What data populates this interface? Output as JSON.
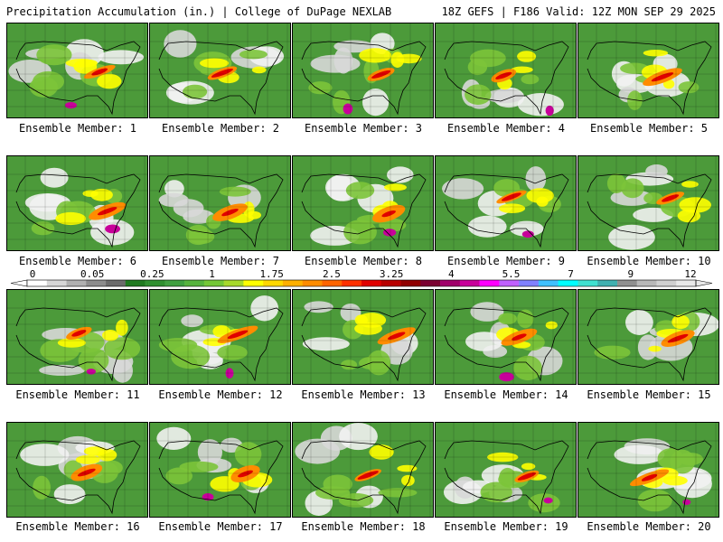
{
  "header": {
    "title_left": "Precipitation Accumulation (in.) | College of DuPage NEXLAB",
    "title_right": "18Z GEFS | F186 Valid: 12Z MON SEP 29 2025"
  },
  "members": [
    {
      "label": "Ensemble Member: 1"
    },
    {
      "label": "Ensemble Member: 2"
    },
    {
      "label": "Ensemble Member: 3"
    },
    {
      "label": "Ensemble Member: 4"
    },
    {
      "label": "Ensemble Member: 5"
    },
    {
      "label": "Ensemble Member: 6"
    },
    {
      "label": "Ensemble Member: 7"
    },
    {
      "label": "Ensemble Member: 8"
    },
    {
      "label": "Ensemble Member: 9"
    },
    {
      "label": "Ensemble Member: 10"
    },
    {
      "label": "Ensemble Member: 11"
    },
    {
      "label": "Ensemble Member: 12"
    },
    {
      "label": "Ensemble Member: 13"
    },
    {
      "label": "Ensemble Member: 14"
    },
    {
      "label": "Ensemble Member: 15"
    },
    {
      "label": "Ensemble Member: 16"
    },
    {
      "label": "Ensemble Member: 17"
    },
    {
      "label": "Ensemble Member: 18"
    },
    {
      "label": "Ensemble Member: 19"
    },
    {
      "label": "Ensemble Member: 20"
    }
  ],
  "colorbar": {
    "tick_labels": [
      "0",
      "0.05",
      "0.25",
      "1",
      "1.75",
      "2.5",
      "3.25",
      "4",
      "5.5",
      "7",
      "9",
      "12"
    ],
    "colors": [
      "#ffffff",
      "#d6d6d6",
      "#b0b0b0",
      "#8c8c8c",
      "#6b6b6b",
      "#1f7a1f",
      "#2f8f2f",
      "#40a040",
      "#56b33d",
      "#74c736",
      "#a7d92b",
      "#ffff00",
      "#ffd700",
      "#ffb000",
      "#ff8c00",
      "#ff6400",
      "#ff3000",
      "#e00000",
      "#b80000",
      "#900000",
      "#7a0030",
      "#a0006a",
      "#c8009a",
      "#ff00ff",
      "#c060ff",
      "#8080ff",
      "#40c0ff",
      "#00ffff",
      "#40e0d0",
      "#40b0b0",
      "#909090",
      "#b8b8b8",
      "#d0d0d0",
      "#e8e8e8"
    ]
  }
}
